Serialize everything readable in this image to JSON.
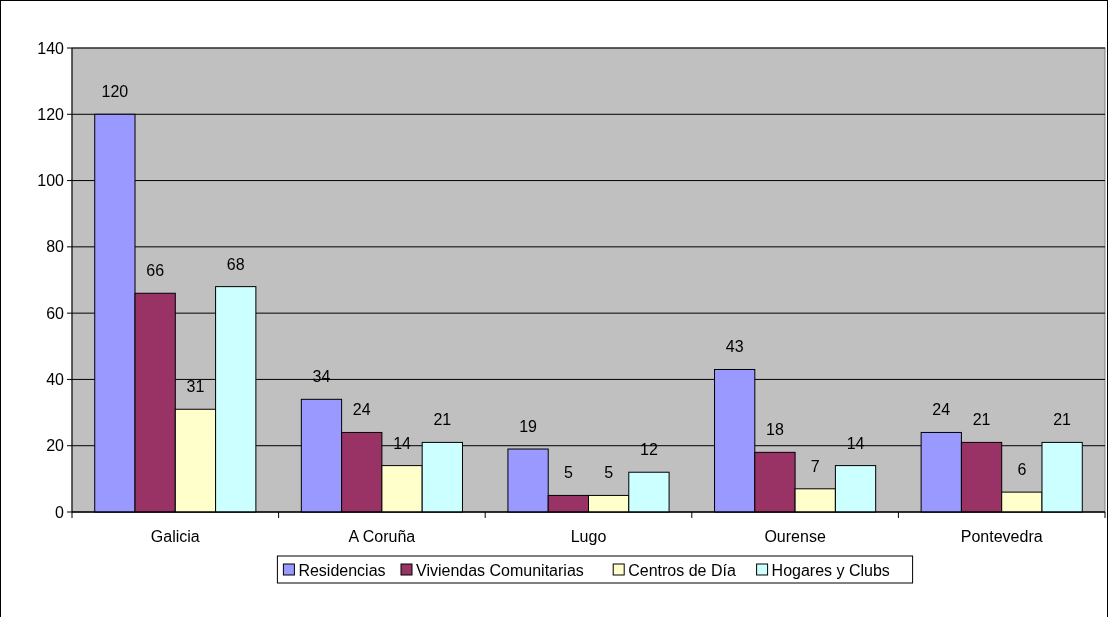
{
  "chart_data": {
    "type": "bar",
    "categories": [
      "Galicia",
      "A Coruña",
      "Lugo",
      "Ourense",
      "Pontevedra"
    ],
    "series": [
      {
        "name": "Residencias",
        "color": "#9999ff",
        "values": [
          120,
          34,
          19,
          43,
          24
        ]
      },
      {
        "name": "Viviendas Comunitarias",
        "color": "#993366",
        "values": [
          66,
          24,
          5,
          18,
          21
        ]
      },
      {
        "name": "Centros de Día",
        "color": "#ffffcc",
        "values": [
          31,
          14,
          5,
          7,
          6
        ]
      },
      {
        "name": "Hogares y Clubs",
        "color": "#ccffff",
        "values": [
          68,
          21,
          12,
          14,
          21
        ]
      }
    ],
    "ylim": [
      0,
      140
    ],
    "yticks": [
      0,
      20,
      40,
      60,
      80,
      100,
      120,
      140
    ],
    "grid": "y",
    "legend": "bottom",
    "data_labels": true
  }
}
